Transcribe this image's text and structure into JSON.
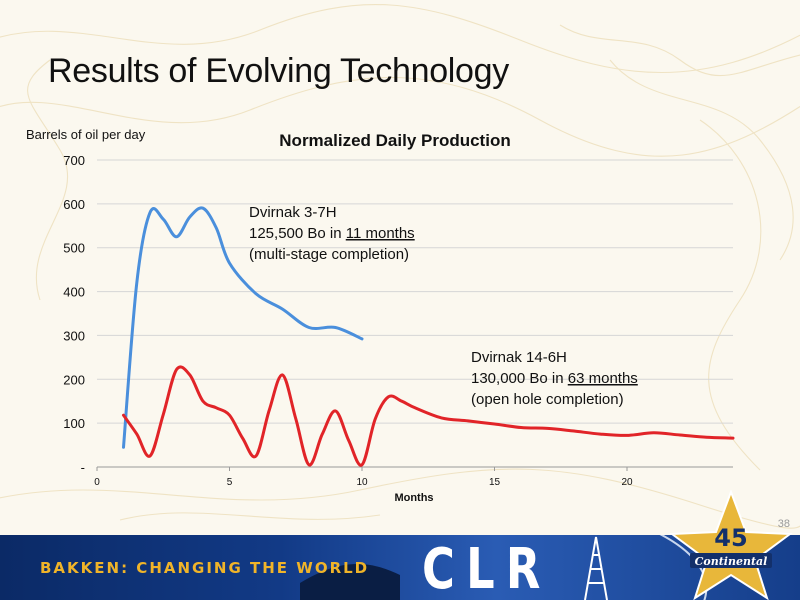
{
  "slide": {
    "title": "Results of Evolving Technology",
    "page_number": "38"
  },
  "footer": {
    "tagline": "BAKKEN: CHANGING THE WORLD",
    "logo_text": "CLR",
    "badge": "Continental"
  },
  "chart_data": {
    "type": "line",
    "title": "Normalized Daily Production",
    "xlabel": "Months",
    "ylabel": "Barrels of oil per day",
    "xlim": [
      0,
      24
    ],
    "ylim": [
      0,
      700
    ],
    "x_ticks": [
      0,
      5,
      10,
      15,
      20
    ],
    "y_ticks": [
      {
        "value": 0,
        "label": "-"
      },
      {
        "value": 100,
        "label": "100"
      },
      {
        "value": 200,
        "label": "200"
      },
      {
        "value": 300,
        "label": "300"
      },
      {
        "value": 400,
        "label": "400"
      },
      {
        "value": 500,
        "label": "500"
      },
      {
        "value": 600,
        "label": "600"
      },
      {
        "value": 700,
        "label": "700"
      }
    ],
    "grid": "horizontal",
    "series": [
      {
        "name": "Dvirnak 3-7H",
        "color": "#4a8fdc",
        "x": [
          1,
          1.5,
          2,
          2.5,
          3,
          3.5,
          4,
          4.5,
          5,
          6,
          7,
          8,
          9,
          10
        ],
        "y": [
          45,
          420,
          580,
          565,
          525,
          570,
          590,
          545,
          465,
          395,
          360,
          318,
          318,
          292
        ]
      },
      {
        "name": "Dvirnak 14-6H",
        "color": "#e12428",
        "x": [
          1,
          1.5,
          2,
          2.5,
          3,
          3.5,
          4,
          4.5,
          5,
          5.5,
          6,
          6.5,
          7,
          7.5,
          8,
          8.5,
          9,
          9.5,
          10,
          10.5,
          11,
          11.5,
          12,
          13,
          14,
          15,
          16,
          17,
          18,
          19,
          20,
          21,
          22,
          23,
          24
        ],
        "y": [
          118,
          75,
          25,
          120,
          222,
          210,
          150,
          135,
          118,
          65,
          25,
          130,
          210,
          110,
          5,
          75,
          128,
          60,
          5,
          110,
          160,
          150,
          135,
          112,
          105,
          98,
          90,
          88,
          82,
          75,
          72,
          78,
          73,
          68,
          66
        ]
      }
    ],
    "annotations": [
      {
        "series": 0,
        "lines": [
          {
            "pre": "",
            "text": "Dvirnak 3-7H",
            "post": ""
          },
          {
            "pre": "125,500 Bo in ",
            "text": "11 months",
            "post": "",
            "underline": true
          },
          {
            "pre": "",
            "text": "(multi-stage completion)",
            "post": ""
          }
        ]
      },
      {
        "series": 1,
        "lines": [
          {
            "pre": "",
            "text": "Dvirnak 14-6H",
            "post": ""
          },
          {
            "pre": "130,000 Bo in ",
            "text": "63 months",
            "post": "",
            "underline": true
          },
          {
            "pre": "",
            "text": "(open hole completion)",
            "post": ""
          }
        ]
      }
    ]
  }
}
